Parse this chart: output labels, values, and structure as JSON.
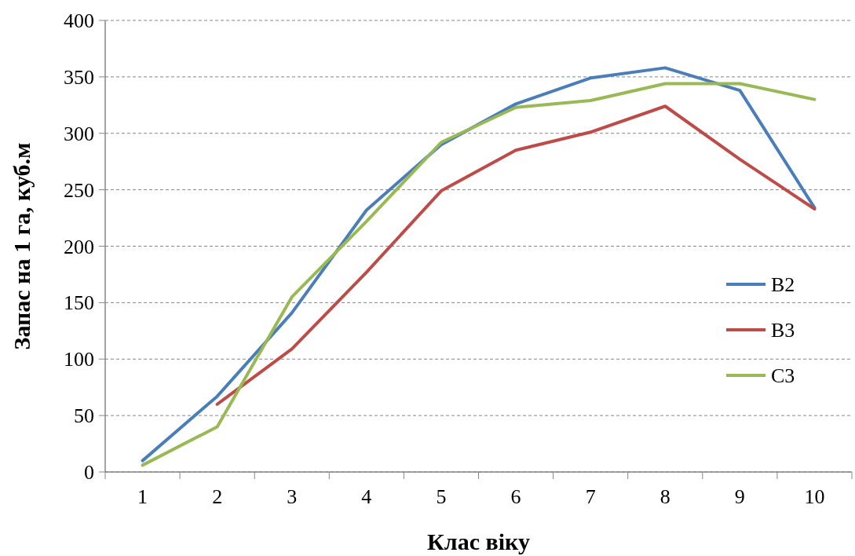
{
  "chart_data": {
    "type": "line",
    "xlabel": "Клас віку",
    "ylabel": "Запас на 1 га, куб.м",
    "categories": [
      "1",
      "2",
      "3",
      "4",
      "5",
      "6",
      "7",
      "8",
      "9",
      "10"
    ],
    "series": [
      {
        "name": "B2",
        "color": "#4a7ebb",
        "values": [
          10,
          67,
          141,
          232,
          290,
          326,
          349,
          358,
          338,
          234
        ]
      },
      {
        "name": "B3",
        "color": "#be4b48",
        "values": [
          null,
          60,
          109,
          177,
          249,
          285,
          301,
          324,
          277,
          233
        ]
      },
      {
        "name": "C3",
        "color": "#98b954",
        "values": [
          6,
          40,
          155,
          222,
          292,
          323,
          329,
          344,
          344,
          330
        ]
      }
    ],
    "ylim": [
      0,
      400
    ],
    "yticks": [
      0,
      50,
      100,
      150,
      200,
      250,
      300,
      350,
      400
    ],
    "grid": "y",
    "legend": "right",
    "marker": "none",
    "line_style": "solid"
  }
}
